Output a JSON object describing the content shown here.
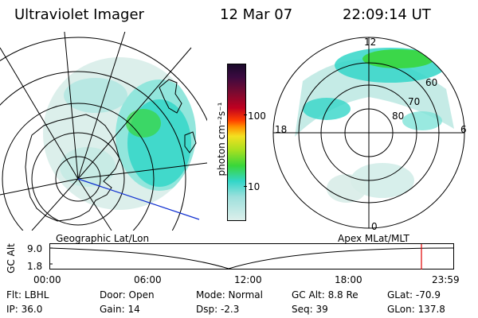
{
  "header": {
    "instrument": "Ultraviolet Imager",
    "date": "12 Mar 07",
    "time": "22:09:14 UT"
  },
  "colorbar": {
    "unit_label": "photon cm⁻²s⁻¹",
    "ticks": [
      "100",
      "10"
    ]
  },
  "left_panel": {
    "label": "Geographic Lat/Lon"
  },
  "right_panel": {
    "label": "Apex MLat/MLT",
    "mlt_labels": [
      "12",
      "18",
      "6",
      "0"
    ],
    "mlat_labels": [
      "60",
      "70",
      "80"
    ]
  },
  "timeline": {
    "axis_label": "GC Alt",
    "y_ticks": [
      "9.0",
      "1.8"
    ],
    "x_ticks": [
      "00:00",
      "06:00",
      "12:00",
      "18:00",
      "23:59"
    ],
    "current_marker_color": "#e00000"
  },
  "status": {
    "row1": [
      "Flt: LBHL",
      "Door: Open",
      "Mode: Normal",
      "GC Alt: 8.8 Re",
      "GLat: -70.9"
    ],
    "row2": [
      "IP: 36.0",
      "Gain: 14",
      "Dsp: -2.3",
      "Seq: 39",
      "GLon: 137.8"
    ]
  },
  "colors": {
    "aurora_green": "#39d63a",
    "aurora_cyan": "#33d6c8",
    "background_pale": "#d8ece8",
    "vector_line": "#1030d0"
  }
}
